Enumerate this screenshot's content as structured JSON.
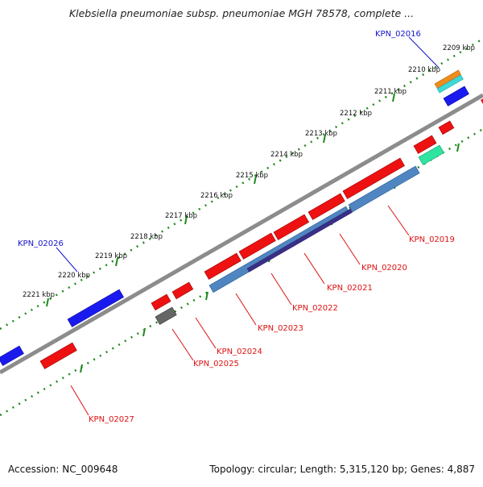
{
  "title": "Klebsiella pneumoniae subsp. pneumoniae MGH 78578, complete ...",
  "footer": {
    "accession": "Accession: NC_009648",
    "summary": "Topology: circular; Length: 5,315,120 bp; Genes: 4,887"
  },
  "colors": {
    "backbone": "#8c8c8c",
    "tick_dots": "#1f8a1f",
    "red_gene": "#ee1111",
    "blue_gene": "#1a1aee",
    "steel_blue": "#4f86c1",
    "dark_purple": "#3a2f86",
    "gray_gene": "#666666",
    "orange_gene": "#f08c1a",
    "cyan_gene": "#3fd8d8",
    "green_gene": "#2fe3a0",
    "label_red": "#dd1111",
    "label_blue": "#1414cc"
  },
  "scale_ticks": [
    "2209 kbp",
    "2210 kbp",
    "2211 kbp",
    "2212 kbp",
    "2213 kbp",
    "2214 kbp",
    "2215 kbp",
    "2216 kbp",
    "2217 kbp",
    "2218 kbp",
    "2219 kbp",
    "2220 kbp",
    "2221 kbp"
  ],
  "gene_labels": {
    "kpn_02016": "KPN_02016",
    "kpn_02019": "KPN_02019",
    "kpn_02020": "KPN_02020",
    "kpn_02021": "KPN_02021",
    "kpn_02022": "KPN_02022",
    "kpn_02023": "KPN_02023",
    "kpn_02024": "KPN_02024",
    "kpn_02025": "KPN_02025",
    "kpn_02026": "KPN_02026",
    "kpn_02027": "KPN_02027"
  }
}
